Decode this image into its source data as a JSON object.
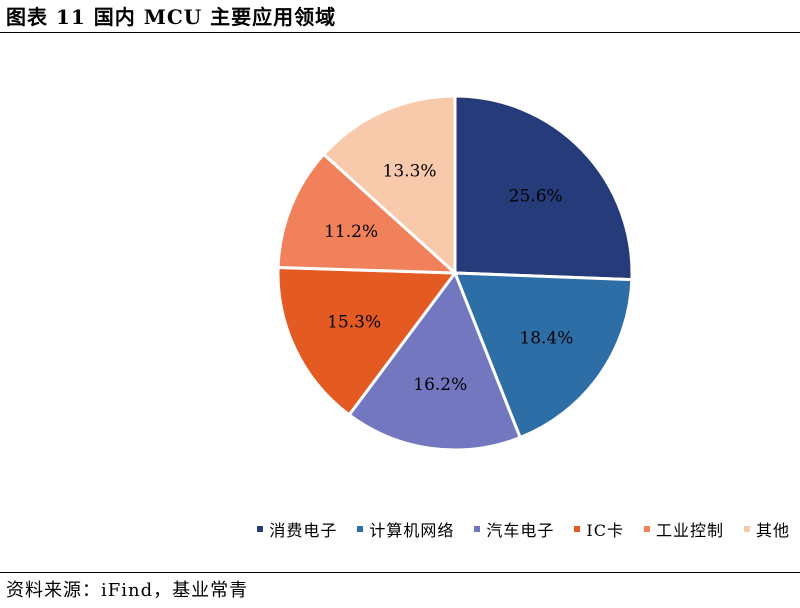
{
  "figure": {
    "title": "图表 11  国内 MCU 主要应用领域",
    "source": "资料来源：iFind，基业常青"
  },
  "chart_data": {
    "type": "pie",
    "categories": [
      "消费电子",
      "计算机网络",
      "汽车电子",
      "IC卡",
      "工业控制",
      "其他"
    ],
    "values": [
      25.6,
      18.4,
      16.2,
      15.3,
      11.2,
      13.3
    ],
    "data_labels": [
      "25.6%",
      "18.4%",
      "16.2%",
      "15.3%",
      "11.2%",
      "13.3%"
    ],
    "colors": [
      "#263C7A",
      "#2E6EA6",
      "#7377BF",
      "#E35A22",
      "#F0815A",
      "#F8C9AB"
    ],
    "start_angle": "12 o'clock",
    "direction": "clockwise",
    "legend_position": "bottom-right"
  }
}
